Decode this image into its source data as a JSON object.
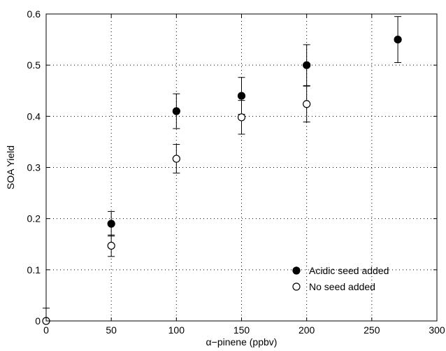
{
  "chart_data": {
    "type": "scatter",
    "xlabel": "α−pinene (ppbv)",
    "ylabel": "SOA Yield",
    "xlim": [
      0,
      300
    ],
    "ylim": [
      0,
      0.6
    ],
    "xticks": [
      0,
      50,
      100,
      150,
      200,
      250,
      300
    ],
    "yticks": [
      0,
      0.1,
      0.2,
      0.3,
      0.4,
      0.5,
      0.6
    ],
    "xtick_labels": [
      "0",
      "50",
      "100",
      "150",
      "200",
      "250",
      "300"
    ],
    "ytick_labels": [
      "0",
      "0.1",
      "0.2",
      "0.3",
      "0.4",
      "0.5",
      "0.6"
    ],
    "grid": true,
    "grid_style": "dotted",
    "legend_position": "bottom-right",
    "series": [
      {
        "name": "Acidic seed added",
        "marker": "filled-circle",
        "color": "#000000",
        "points": [
          {
            "x": 50,
            "y": 0.19,
            "err": 0.024
          },
          {
            "x": 100,
            "y": 0.41,
            "err": 0.034
          },
          {
            "x": 150,
            "y": 0.44,
            "err": 0.036
          },
          {
            "x": 200,
            "y": 0.5,
            "err": 0.04
          },
          {
            "x": 270,
            "y": 0.55,
            "err": 0.045
          }
        ]
      },
      {
        "name": "No seed added",
        "marker": "open-circle",
        "color": "#000000",
        "points": [
          {
            "x": 0,
            "y": 0.0,
            "err": 0.025
          },
          {
            "x": 50,
            "y": 0.147,
            "err": 0.021
          },
          {
            "x": 100,
            "y": 0.317,
            "err": 0.028
          },
          {
            "x": 150,
            "y": 0.398,
            "err": 0.033
          },
          {
            "x": 200,
            "y": 0.424,
            "err": 0.035
          }
        ]
      }
    ]
  }
}
